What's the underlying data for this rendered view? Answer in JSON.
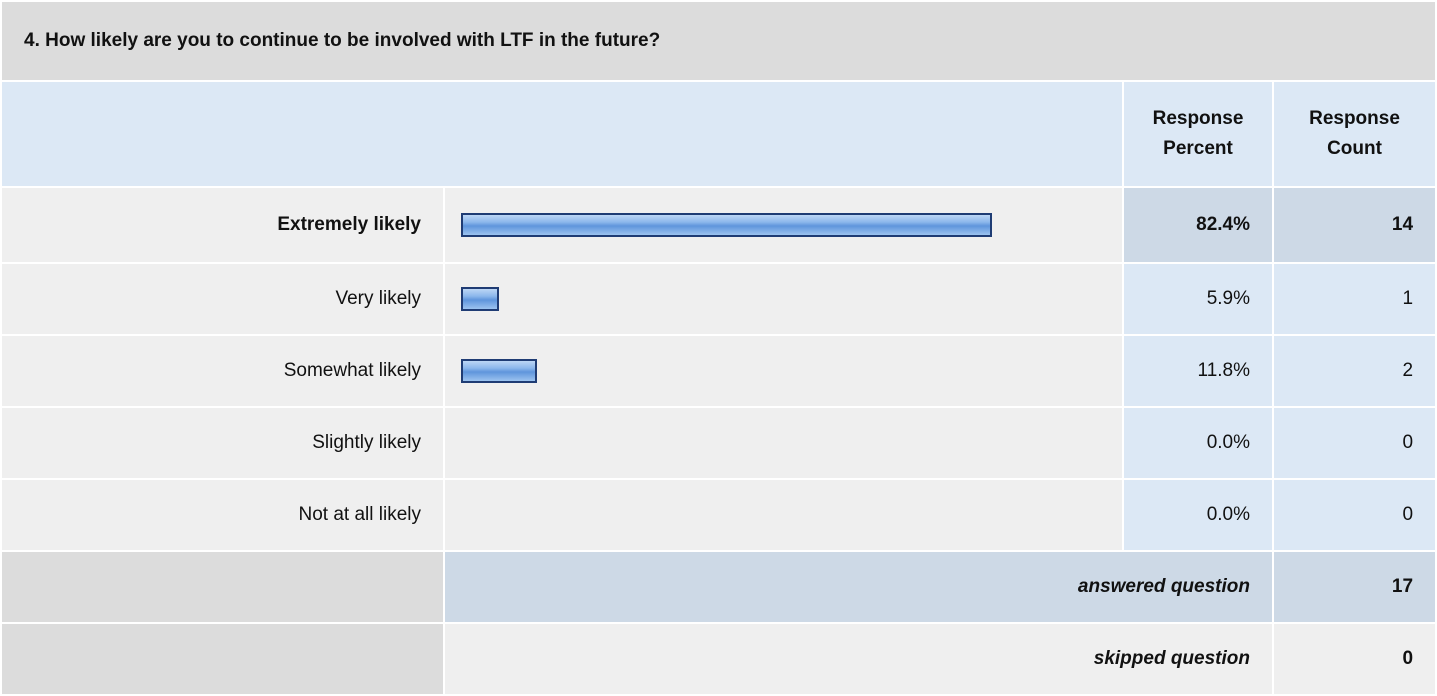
{
  "chart_data": {
    "type": "bar",
    "title": "4. How likely are you to continue to be involved with LTF in the future?",
    "column_headers": [
      "Response Percent",
      "Response Count"
    ],
    "categories": [
      "Extremely likely",
      "Very likely",
      "Somewhat likely",
      "Slightly likely",
      "Not at all likely"
    ],
    "values": [
      82.4,
      5.9,
      11.8,
      0,
      0
    ],
    "value_labels": [
      "82.4%",
      "5.9%",
      "11.8%",
      "0.0%",
      "0.0%"
    ],
    "counts": [
      14,
      1,
      2,
      0,
      0
    ],
    "answered_label": "answered question",
    "answered": 17,
    "skipped_label": "skipped question",
    "skipped": 0
  }
}
